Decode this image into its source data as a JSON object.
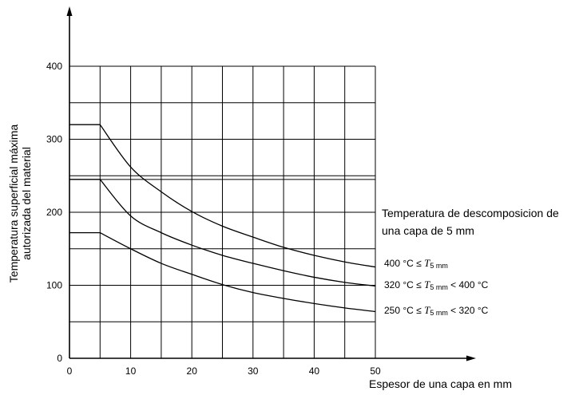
{
  "chart_data": {
    "type": "line",
    "xlabel": "Espesor de una capa en mm",
    "ylabel_line1": "Temperatura superficial máxima",
    "ylabel_line2": "autorizada del material",
    "xlim": [
      0,
      50
    ],
    "ylim": [
      0,
      400
    ],
    "x_ticks": [
      "0",
      "10",
      "20",
      "30",
      "40",
      "50"
    ],
    "y_ticks": [
      "0",
      "100",
      "200",
      "300",
      "400"
    ],
    "grid_x": [
      5,
      10,
      15,
      20,
      25,
      30,
      35,
      40,
      45,
      50
    ],
    "grid_y": [
      50,
      100,
      150,
      200,
      250,
      300,
      350,
      400
    ],
    "grid_y_extra": [
      245
    ],
    "emphasized_grid_x": [
      30
    ],
    "grid": true,
    "series": [
      {
        "name": "400 °C ≤ T5 mm",
        "x": [
          0,
          5,
          10,
          15,
          20,
          25,
          30,
          35,
          40,
          45,
          50
        ],
        "y": [
          320,
          320,
          262,
          228,
          201,
          181,
          166,
          152,
          141,
          132,
          125
        ]
      },
      {
        "name": "320 °C ≤ T5 mm < 400 °C",
        "x": [
          0,
          5,
          10,
          15,
          20,
          25,
          30,
          35,
          40,
          45,
          50
        ],
        "y": [
          245,
          245,
          195,
          172,
          155,
          141,
          130,
          120,
          111,
          104,
          99
        ]
      },
      {
        "name": "250 °C ≤ T5 mm < 320 °C",
        "x": [
          0,
          5,
          10,
          15,
          20,
          25,
          30,
          35,
          40,
          45,
          50
        ],
        "y": [
          172,
          172,
          150,
          130,
          115,
          101,
          90,
          82,
          75,
          69,
          64
        ]
      }
    ],
    "annotation_line1": "Temperatura de descomposicion de",
    "annotation_line2": "una capa de 5 mm",
    "ranges": [
      {
        "prefix": "400 °C ≤ ",
        "sym": "T",
        "sub": "5 mm",
        "suffix": ""
      },
      {
        "prefix": "320 °C ≤ ",
        "sym": "T",
        "sub": "5 mm",
        "suffix": " < 400 °C"
      },
      {
        "prefix": "250 °C ≤ ",
        "sym": "T",
        "sub": "5 mm",
        "suffix": " < 320 °C"
      }
    ]
  }
}
